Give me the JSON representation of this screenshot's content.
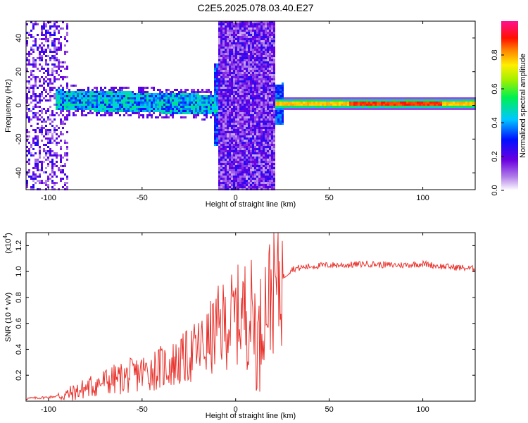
{
  "title": "C2E5.2025.078.03.40.E27",
  "colors": {
    "snr_line": "#e8312b",
    "axis": "#000000",
    "background": "#ffffff"
  },
  "chart_data": [
    {
      "type": "heatmap",
      "title": "C2E5.2025.078.03.40.E27",
      "xlabel": "Height of straight line (km)",
      "ylabel": "Frequency (Hz)",
      "xlim": [
        -112,
        128
      ],
      "ylim": [
        -50,
        50
      ],
      "xticks": [
        -100,
        -50,
        0,
        50,
        100
      ],
      "yticks": [
        -40,
        -20,
        0,
        20,
        40
      ],
      "colorbar": {
        "label": "Normalized spectral amplitude",
        "range": [
          0,
          1
        ],
        "ticks": [
          "0.0",
          "0.2",
          "0.4",
          "0.6",
          "0.8"
        ],
        "colormap": "rainbow (white-violet-blue-cyan-green-yellow-red-magenta)"
      },
      "features": [
        {
          "x_range": [
            -112,
            -95
          ],
          "note": "scattered low amplitude over full frequency range"
        },
        {
          "x_range": [
            -97,
            -10
          ],
          "freq_center": 3,
          "freq_halfwidth": 6,
          "amplitude": 0.3
        },
        {
          "x_range": [
            -10,
            21
          ],
          "note": "noisy band over full frequency range, amplitude 0.1-0.3"
        },
        {
          "x_range": [
            21,
            128
          ],
          "freq_center": 2,
          "freq_halfwidth": 2,
          "amplitude": 0.8
        }
      ]
    },
    {
      "type": "line",
      "xlabel": "Height of straight line (km)",
      "ylabel": "SNR (10 * v/v)",
      "y_multiplier": "(x10^4)",
      "xlim": [
        -112,
        128
      ],
      "ylim": [
        0,
        1.3
      ],
      "xticks": [
        -100,
        -50,
        0,
        50,
        100
      ],
      "yticks": [
        "0.2",
        "0.4",
        "0.6",
        "0.8",
        "1.0",
        "1.2"
      ],
      "series": [
        {
          "x": [
            -112,
            -100,
            -90,
            -80,
            -70,
            -60,
            -50,
            -40,
            -30,
            -20,
            -15,
            -10,
            -5,
            0,
            5,
            10,
            12,
            15,
            20,
            25,
            30,
            40,
            50,
            60,
            70,
            80,
            90,
            100,
            110,
            120,
            128
          ],
          "y": [
            0.02,
            0.03,
            0.05,
            0.1,
            0.15,
            0.18,
            0.22,
            0.26,
            0.3,
            0.4,
            0.45,
            0.55,
            0.6,
            0.65,
            0.7,
            0.65,
            0.4,
            0.75,
            0.85,
            0.95,
            1.02,
            1.04,
            1.05,
            1.05,
            1.06,
            1.05,
            1.05,
            1.06,
            1.04,
            1.03,
            1.02
          ]
        }
      ]
    }
  ],
  "labels": {
    "xlabel_top": "Height of straight line (km)",
    "xlabel_bottom": "Height of straight line (km)",
    "ylabel_top": "Frequency (Hz)",
    "ylabel_bottom": "SNR (10 * v/v)",
    "multiplier_base": "(x10",
    "multiplier_exp": "4",
    "multiplier_end": ")",
    "colorbar_label": "Normalized spectral amplitude"
  }
}
